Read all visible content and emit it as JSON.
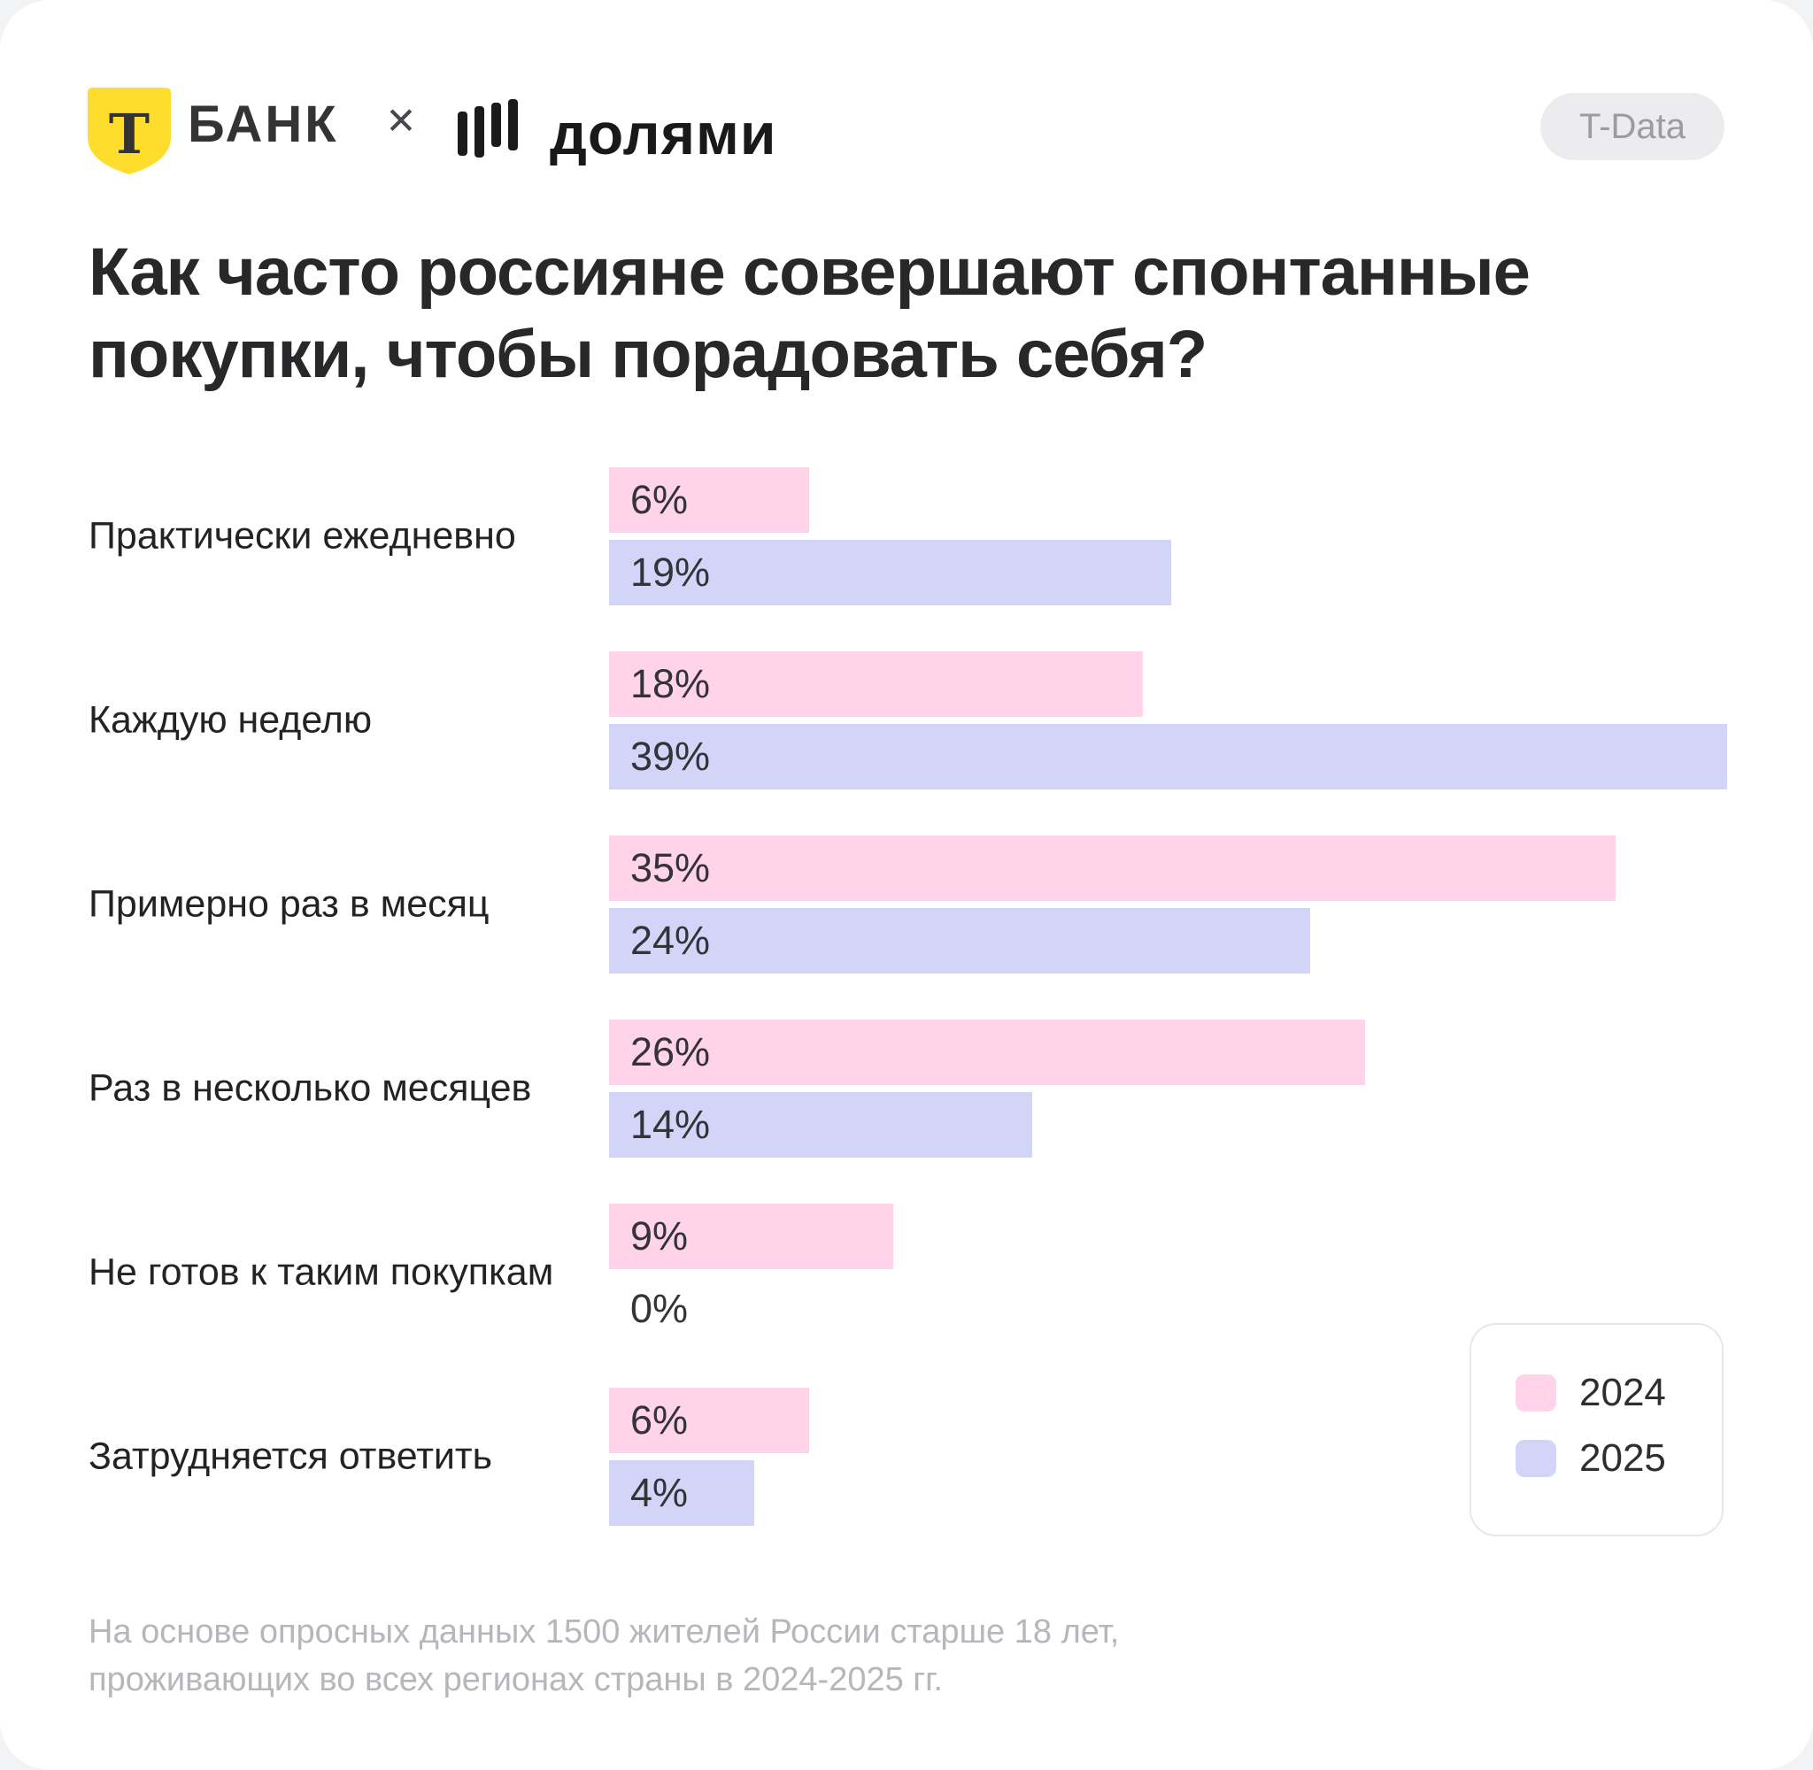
{
  "header": {
    "bank_logo_letter": "Т",
    "bank_logo_text": "БАНК",
    "collab_x": "✕",
    "partner_logo_text": "долями",
    "badge_label": "T-Data"
  },
  "title": "Как часто россияне совершают спонтанные покупки, чтобы порадовать себя?",
  "chart_data": {
    "type": "bar",
    "orientation": "horizontal",
    "categories": [
      "Практически ежедневно",
      "Каждую неделю",
      "Примерно раз в месяц",
      "Раз в несколько месяцев",
      "Не готов к таким покупкам",
      "Затрудняется ответить"
    ],
    "series": [
      {
        "name": "2024",
        "color": "#FFD3E9",
        "values": [
          6,
          18,
          35,
          26,
          9,
          6
        ]
      },
      {
        "name": "2025",
        "color": "#D2D5F8",
        "values": [
          19,
          39,
          24,
          14,
          0,
          4
        ]
      }
    ],
    "value_suffix": "%",
    "xlim": [
      0,
      39
    ],
    "grid": false,
    "legend_position": "bottom-right",
    "title": "Как часто россияне совершают спонтанные покупки, чтобы порадовать себя?"
  },
  "footnote": {
    "lines": [
      "На основе опросных данных 1500 жителей России старше 18 лет,",
      "проживающих во всех регионах страны в 2024-2025 гг."
    ]
  },
  "colors": {
    "series_2024": "#FFD3E9",
    "series_2025": "#D2D5F8",
    "shield_yellow": "#FFDD2D",
    "text_dark": "#28282b",
    "text_muted": "#b6b6bb",
    "badge_bg": "#ececee",
    "badge_text": "#9b9ca0"
  }
}
